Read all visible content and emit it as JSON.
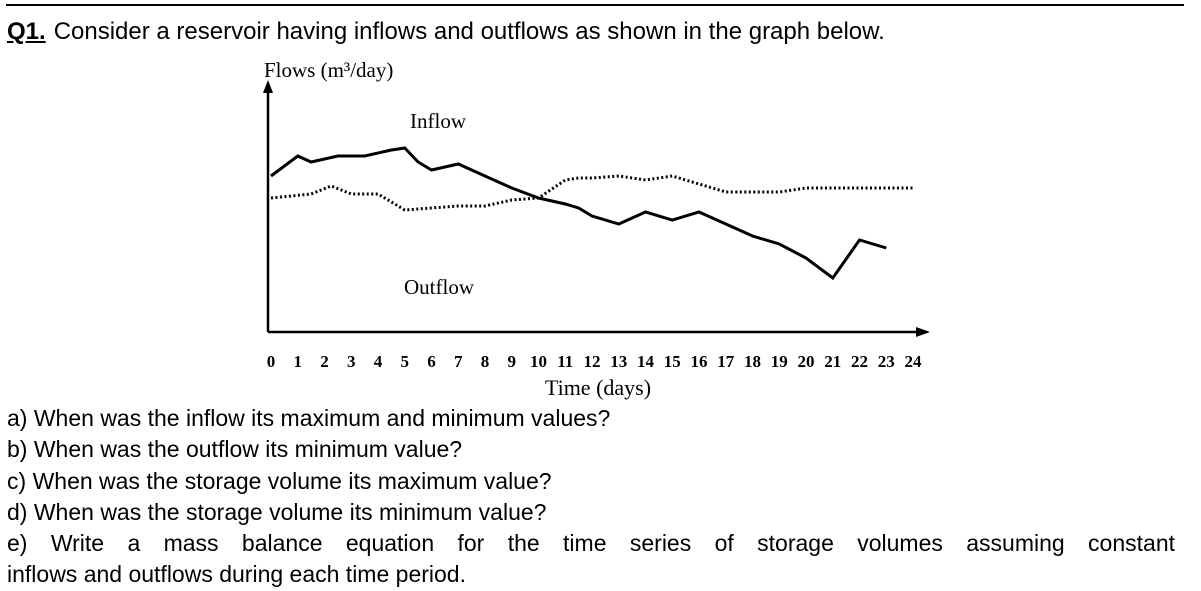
{
  "question": {
    "number": "Q1.",
    "text": "Consider a reservoir having inflows and outflows as shown in the graph below."
  },
  "chart_data": {
    "type": "line",
    "ylabel": "Flows (m³/day)",
    "xlabel": "Time (days)",
    "x_ticks": [
      0,
      1,
      2,
      3,
      4,
      5,
      6,
      7,
      8,
      9,
      10,
      11,
      12,
      13,
      14,
      15,
      16,
      17,
      18,
      19,
      20,
      21,
      22,
      23,
      24
    ],
    "xlim": [
      0,
      24
    ],
    "y_values_shown": false,
    "grid": false,
    "series": [
      {
        "name": "Inflow",
        "style": "solid",
        "x": [
          0,
          1.0,
          1.5,
          2.5,
          3.5,
          4.5,
          5.0,
          5.5,
          6.0,
          7.0,
          8.0,
          9.0,
          10.0,
          11.0,
          11.5,
          12.0,
          13.0,
          14.0,
          15.0,
          16.0,
          17.0,
          18.0,
          19.0,
          20.0,
          21.0,
          22.0,
          23.0
        ],
        "y": [
          7.0,
          9.5,
          8.75,
          9.5,
          9.5,
          10.25,
          10.5,
          8.75,
          7.75,
          8.5,
          7.0,
          5.5,
          4.25,
          3.5,
          3.0,
          2.0,
          1.0,
          2.5,
          1.5,
          2.5,
          1.0,
          -0.5,
          -1.5,
          -3.25,
          -5.75,
          -1.0,
          -2.0
        ]
      },
      {
        "name": "Outflow",
        "style": "dotted",
        "x": [
          0,
          1.5,
          2.25,
          3.0,
          4.0,
          4.5,
          5.0,
          6.0,
          7.0,
          8.0,
          9.0,
          10.0,
          11.0,
          11.5,
          12.0,
          13.0,
          14.0,
          15.0,
          16.0,
          17.0,
          18.0,
          19.0,
          20.0,
          21.0,
          22.0,
          23.0,
          24.0
        ],
        "y": [
          4.25,
          4.75,
          5.75,
          4.75,
          4.75,
          3.75,
          2.75,
          3.0,
          3.25,
          3.25,
          4.0,
          4.25,
          6.5,
          6.75,
          6.75,
          7.0,
          6.5,
          7.0,
          6.0,
          5.0,
          5.0,
          5.0,
          5.5,
          5.5,
          5.5,
          5.5,
          5.5
        ]
      }
    ]
  },
  "parts": [
    {
      "label": "a)",
      "text": "When was the inflow its maximum and minimum values?"
    },
    {
      "label": "b)",
      "text": "When was the outflow its minimum value?"
    },
    {
      "label": "c)",
      "text": "When was the storage volume its maximum value?"
    },
    {
      "label": "d)",
      "text": "When was the storage volume its minimum value?"
    },
    {
      "label": "e)",
      "text_line1": "Write a mass balance equation for the time series of storage volumes assuming constant",
      "text_line2": "inflows and outflows during each time period."
    }
  ]
}
